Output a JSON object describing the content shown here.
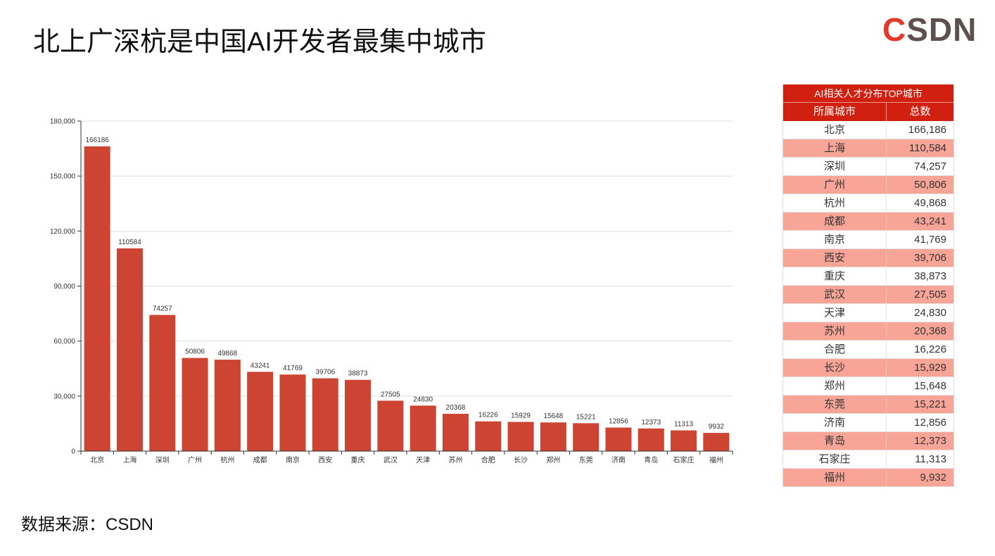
{
  "page": {
    "title": "北上广深杭是中国AI开发者最集中城市",
    "source": "数据来源：CSDN"
  },
  "logo": {
    "first": "C",
    "rest": "SDN"
  },
  "colors": {
    "bar": "#cd4532",
    "table_header": "#d1200f",
    "stripe": "#f8a597",
    "logo_red": "#e4392a",
    "logo_gray": "#5d504e",
    "grid": "#e0e0e0",
    "axis": "#333333"
  },
  "table": {
    "title": "AI相关人才分布TOP城市",
    "col_city": "所属城市",
    "col_total": "总数",
    "rows": [
      {
        "city": "北京",
        "total": "166,186"
      },
      {
        "city": "上海",
        "total": "110,584"
      },
      {
        "city": "深圳",
        "total": "74,257"
      },
      {
        "city": "广州",
        "total": "50,806"
      },
      {
        "city": "杭州",
        "total": "49,868"
      },
      {
        "city": "成都",
        "total": "43,241"
      },
      {
        "city": "南京",
        "total": "41,769"
      },
      {
        "city": "西安",
        "total": "39,706"
      },
      {
        "city": "重庆",
        "total": "38,873"
      },
      {
        "city": "武汉",
        "total": "27,505"
      },
      {
        "city": "天津",
        "total": "24,830"
      },
      {
        "city": "苏州",
        "total": "20,368"
      },
      {
        "city": "合肥",
        "total": "16,226"
      },
      {
        "city": "长沙",
        "total": "15,929"
      },
      {
        "city": "郑州",
        "total": "15,648"
      },
      {
        "city": "东莞",
        "total": "15,221"
      },
      {
        "city": "济南",
        "total": "12,856"
      },
      {
        "city": "青岛",
        "total": "12,373"
      },
      {
        "city": "石家庄",
        "total": "11,313"
      },
      {
        "city": "福州",
        "total": "9,932"
      }
    ]
  },
  "chart_data": {
    "type": "bar",
    "categories": [
      "北京",
      "上海",
      "深圳",
      "广州",
      "杭州",
      "成都",
      "南京",
      "西安",
      "重庆",
      "武汉",
      "天津",
      "苏州",
      "合肥",
      "长沙",
      "郑州",
      "东莞",
      "济南",
      "青岛",
      "石家庄",
      "福州"
    ],
    "values": [
      166186,
      110584,
      74257,
      50806,
      49868,
      43241,
      41769,
      39706,
      38873,
      27505,
      24830,
      20368,
      16226,
      15929,
      15648,
      15221,
      12856,
      12373,
      11313,
      9932
    ],
    "data_labels": true,
    "ylim": [
      0,
      180000
    ],
    "yticks": [
      {
        "value": 0,
        "label": "0"
      },
      {
        "value": 30000,
        "label": "30,000"
      },
      {
        "value": 60000,
        "label": "60,000"
      },
      {
        "value": 90000,
        "label": "90,000"
      },
      {
        "value": 120000,
        "label": "120,000"
      },
      {
        "value": 150000,
        "label": "150,000"
      },
      {
        "value": 180000,
        "label": "180,000"
      }
    ],
    "grid": true,
    "legend": "none"
  }
}
